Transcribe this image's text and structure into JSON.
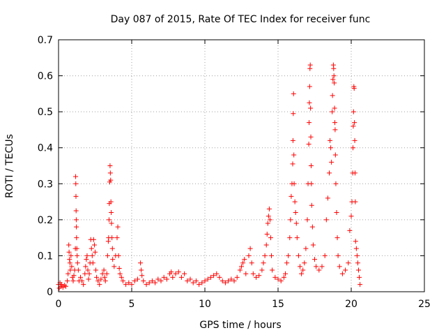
{
  "chart_data": {
    "type": "scatter",
    "title": "Day 087 of 2015, Rate Of TEC Index for receiver func",
    "xlabel": "GPS time / hours",
    "ylabel": "ROTI / TECUs",
    "xlim": [
      0,
      25
    ],
    "ylim": [
      0,
      0.7
    ],
    "x_ticks": [
      0,
      5,
      10,
      15,
      20,
      25
    ],
    "y_ticks": [
      0,
      0.1,
      0.2,
      0.3,
      0.4,
      0.5,
      0.6,
      0.7
    ],
    "x_tick_labels": [
      "0",
      "5",
      "10",
      "15",
      "20",
      "25"
    ],
    "y_tick_labels": [
      "0",
      "0.1",
      "0.2",
      "0.3",
      "0.4",
      "0.5",
      "0.6",
      "0.7"
    ],
    "grid": true,
    "marker": "+",
    "color": "#ff0000",
    "series": [
      {
        "points": [
          [
            0.0,
            0.02
          ],
          [
            0.05,
            0.01
          ],
          [
            0.1,
            0.025
          ],
          [
            0.15,
            0.015
          ],
          [
            0.2,
            0.02
          ],
          [
            0.3,
            0.012
          ],
          [
            0.4,
            0.018
          ],
          [
            0.5,
            0.015
          ],
          [
            0.6,
            0.03
          ],
          [
            0.65,
            0.05
          ],
          [
            0.7,
            0.13
          ],
          [
            0.72,
            0.11
          ],
          [
            0.75,
            0.09
          ],
          [
            0.78,
            0.08
          ],
          [
            0.8,
            0.06
          ],
          [
            0.85,
            0.1
          ],
          [
            0.9,
            0.07
          ],
          [
            0.95,
            0.04
          ],
          [
            1.0,
            0.03
          ],
          [
            1.05,
            0.045
          ],
          [
            1.1,
            0.06
          ],
          [
            1.15,
            0.12
          ],
          [
            1.17,
            0.32
          ],
          [
            1.18,
            0.3
          ],
          [
            1.19,
            0.265
          ],
          [
            1.2,
            0.225
          ],
          [
            1.21,
            0.2
          ],
          [
            1.22,
            0.18
          ],
          [
            1.23,
            0.15
          ],
          [
            1.25,
            0.12
          ],
          [
            1.27,
            0.1
          ],
          [
            1.3,
            0.08
          ],
          [
            1.35,
            0.06
          ],
          [
            1.4,
            0.03
          ],
          [
            1.5,
            0.04
          ],
          [
            1.6,
            0.03
          ],
          [
            1.7,
            0.02
          ],
          [
            1.8,
            0.05
          ],
          [
            1.85,
            0.07
          ],
          [
            1.9,
            0.09
          ],
          [
            1.95,
            0.1
          ],
          [
            2.0,
            0.06
          ],
          [
            2.05,
            0.035
          ],
          [
            2.1,
            0.05
          ],
          [
            2.15,
            0.08
          ],
          [
            2.2,
            0.145
          ],
          [
            2.25,
            0.12
          ],
          [
            2.3,
            0.1
          ],
          [
            2.35,
            0.08
          ],
          [
            2.4,
            0.145
          ],
          [
            2.45,
            0.13
          ],
          [
            2.5,
            0.11
          ],
          [
            2.55,
            0.06
          ],
          [
            2.6,
            0.04
          ],
          [
            2.7,
            0.03
          ],
          [
            2.8,
            0.02
          ],
          [
            2.9,
            0.035
          ],
          [
            3.0,
            0.05
          ],
          [
            3.1,
            0.06
          ],
          [
            3.15,
            0.04
          ],
          [
            3.2,
            0.03
          ],
          [
            3.3,
            0.05
          ],
          [
            3.35,
            0.1
          ],
          [
            3.4,
            0.14
          ],
          [
            3.42,
            0.15
          ],
          [
            3.45,
            0.2
          ],
          [
            3.47,
            0.245
          ],
          [
            3.5,
            0.305
          ],
          [
            3.52,
            0.35
          ],
          [
            3.54,
            0.33
          ],
          [
            3.56,
            0.31
          ],
          [
            3.58,
            0.25
          ],
          [
            3.6,
            0.22
          ],
          [
            3.62,
            0.19
          ],
          [
            3.65,
            0.15
          ],
          [
            3.68,
            0.12
          ],
          [
            3.7,
            0.09
          ],
          [
            3.8,
            0.07
          ],
          [
            3.9,
            0.1
          ],
          [
            4.0,
            0.15
          ],
          [
            4.05,
            0.18
          ],
          [
            4.1,
            0.1
          ],
          [
            4.15,
            0.065
          ],
          [
            4.2,
            0.05
          ],
          [
            4.3,
            0.04
          ],
          [
            4.4,
            0.03
          ],
          [
            4.6,
            0.02
          ],
          [
            4.8,
            0.025
          ],
          [
            5.0,
            0.02
          ],
          [
            5.2,
            0.03
          ],
          [
            5.4,
            0.035
          ],
          [
            5.6,
            0.08
          ],
          [
            5.65,
            0.06
          ],
          [
            5.7,
            0.045
          ],
          [
            5.8,
            0.03
          ],
          [
            6.0,
            0.02
          ],
          [
            6.2,
            0.025
          ],
          [
            6.4,
            0.03
          ],
          [
            6.6,
            0.025
          ],
          [
            6.8,
            0.035
          ],
          [
            7.0,
            0.03
          ],
          [
            7.2,
            0.04
          ],
          [
            7.4,
            0.035
          ],
          [
            7.6,
            0.05
          ],
          [
            7.7,
            0.055
          ],
          [
            7.8,
            0.04
          ],
          [
            8.0,
            0.05
          ],
          [
            8.2,
            0.055
          ],
          [
            8.4,
            0.04
          ],
          [
            8.6,
            0.05
          ],
          [
            8.8,
            0.03
          ],
          [
            9.0,
            0.035
          ],
          [
            9.2,
            0.025
          ],
          [
            9.4,
            0.03
          ],
          [
            9.6,
            0.02
          ],
          [
            9.8,
            0.025
          ],
          [
            10.0,
            0.03
          ],
          [
            10.2,
            0.035
          ],
          [
            10.4,
            0.04
          ],
          [
            10.6,
            0.045
          ],
          [
            10.8,
            0.05
          ],
          [
            11.0,
            0.04
          ],
          [
            11.2,
            0.03
          ],
          [
            11.4,
            0.025
          ],
          [
            11.6,
            0.03
          ],
          [
            11.8,
            0.035
          ],
          [
            12.0,
            0.03
          ],
          [
            12.2,
            0.04
          ],
          [
            12.4,
            0.06
          ],
          [
            12.5,
            0.07
          ],
          [
            12.6,
            0.08
          ],
          [
            12.7,
            0.09
          ],
          [
            12.8,
            0.05
          ],
          [
            13.0,
            0.1
          ],
          [
            13.1,
            0.12
          ],
          [
            13.2,
            0.08
          ],
          [
            13.3,
            0.05
          ],
          [
            13.5,
            0.04
          ],
          [
            13.7,
            0.045
          ],
          [
            13.9,
            0.06
          ],
          [
            14.0,
            0.08
          ],
          [
            14.1,
            0.1
          ],
          [
            14.2,
            0.13
          ],
          [
            14.25,
            0.16
          ],
          [
            14.3,
            0.19
          ],
          [
            14.35,
            0.21
          ],
          [
            14.4,
            0.23
          ],
          [
            14.45,
            0.2
          ],
          [
            14.5,
            0.15
          ],
          [
            14.55,
            0.1
          ],
          [
            14.6,
            0.06
          ],
          [
            14.8,
            0.04
          ],
          [
            15.0,
            0.035
          ],
          [
            15.2,
            0.03
          ],
          [
            15.4,
            0.04
          ],
          [
            15.5,
            0.05
          ],
          [
            15.6,
            0.08
          ],
          [
            15.7,
            0.1
          ],
          [
            15.8,
            0.15
          ],
          [
            15.85,
            0.2
          ],
          [
            15.9,
            0.265
          ],
          [
            15.95,
            0.3
          ],
          [
            16.0,
            0.355
          ],
          [
            16.02,
            0.42
          ],
          [
            16.04,
            0.495
          ],
          [
            16.06,
            0.55
          ],
          [
            16.08,
            0.38
          ],
          [
            16.1,
            0.3
          ],
          [
            16.15,
            0.25
          ],
          [
            16.2,
            0.22
          ],
          [
            16.25,
            0.19
          ],
          [
            16.3,
            0.15
          ],
          [
            16.4,
            0.1
          ],
          [
            16.5,
            0.07
          ],
          [
            16.6,
            0.05
          ],
          [
            16.7,
            0.06
          ],
          [
            16.8,
            0.08
          ],
          [
            16.9,
            0.12
          ],
          [
            17.0,
            0.2
          ],
          [
            17.05,
            0.3
          ],
          [
            17.1,
            0.41
          ],
          [
            17.12,
            0.47
          ],
          [
            17.14,
            0.525
          ],
          [
            17.16,
            0.57
          ],
          [
            17.18,
            0.62
          ],
          [
            17.2,
            0.63
          ],
          [
            17.22,
            0.51
          ],
          [
            17.24,
            0.43
          ],
          [
            17.26,
            0.35
          ],
          [
            17.28,
            0.3
          ],
          [
            17.3,
            0.24
          ],
          [
            17.35,
            0.18
          ],
          [
            17.4,
            0.13
          ],
          [
            17.5,
            0.09
          ],
          [
            17.6,
            0.07
          ],
          [
            17.8,
            0.06
          ],
          [
            18.0,
            0.07
          ],
          [
            18.2,
            0.1
          ],
          [
            18.3,
            0.2
          ],
          [
            18.4,
            0.26
          ],
          [
            18.5,
            0.33
          ],
          [
            18.55,
            0.42
          ],
          [
            18.6,
            0.4
          ],
          [
            18.65,
            0.36
          ],
          [
            18.7,
            0.5
          ],
          [
            18.72,
            0.545
          ],
          [
            18.75,
            0.59
          ],
          [
            18.78,
            0.63
          ],
          [
            18.8,
            0.62
          ],
          [
            18.82,
            0.6
          ],
          [
            18.84,
            0.58
          ],
          [
            18.86,
            0.51
          ],
          [
            18.88,
            0.47
          ],
          [
            18.9,
            0.45
          ],
          [
            18.92,
            0.38
          ],
          [
            18.95,
            0.3
          ],
          [
            19.0,
            0.22
          ],
          [
            19.05,
            0.15
          ],
          [
            19.1,
            0.1
          ],
          [
            19.2,
            0.07
          ],
          [
            19.4,
            0.05
          ],
          [
            19.6,
            0.06
          ],
          [
            19.8,
            0.08
          ],
          [
            19.9,
            0.17
          ],
          [
            20.0,
            0.21
          ],
          [
            20.05,
            0.25
          ],
          [
            20.1,
            0.33
          ],
          [
            20.12,
            0.4
          ],
          [
            20.14,
            0.46
          ],
          [
            20.16,
            0.5
          ],
          [
            20.18,
            0.57
          ],
          [
            20.2,
            0.565
          ],
          [
            20.22,
            0.47
          ],
          [
            20.24,
            0.42
          ],
          [
            20.26,
            0.33
          ],
          [
            20.28,
            0.25
          ],
          [
            20.3,
            0.14
          ],
          [
            20.35,
            0.12
          ],
          [
            20.4,
            0.1
          ],
          [
            20.45,
            0.08
          ],
          [
            20.5,
            0.06
          ],
          [
            20.55,
            0.04
          ],
          [
            20.6,
            0.02
          ]
        ]
      }
    ]
  }
}
